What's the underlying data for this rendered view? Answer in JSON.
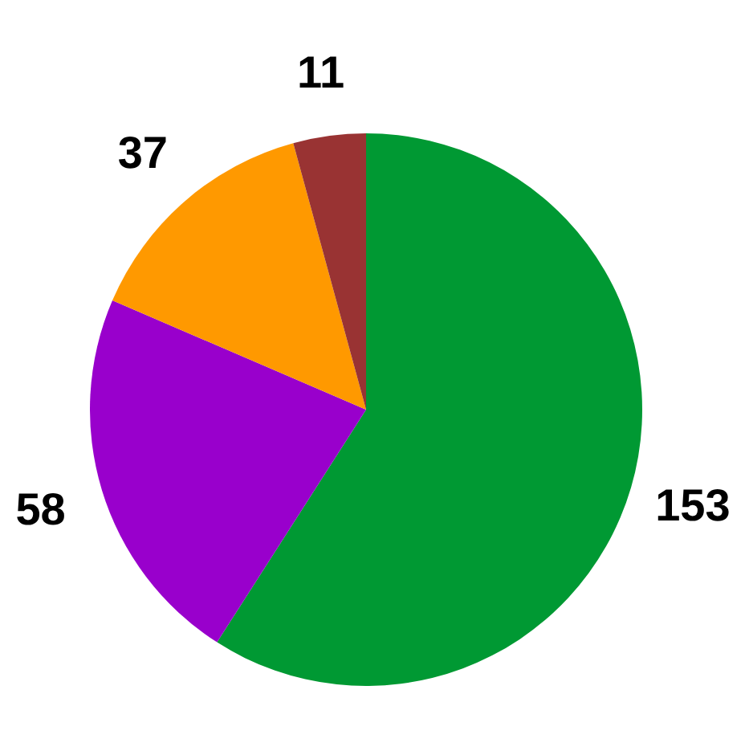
{
  "chart_data": {
    "type": "pie",
    "categories": [
      null,
      null,
      null,
      null
    ],
    "values": [
      153,
      58,
      37,
      11
    ],
    "colors": [
      "#009933",
      "#9900cc",
      "#ff9900",
      "#993333"
    ],
    "data_labels": true
  }
}
